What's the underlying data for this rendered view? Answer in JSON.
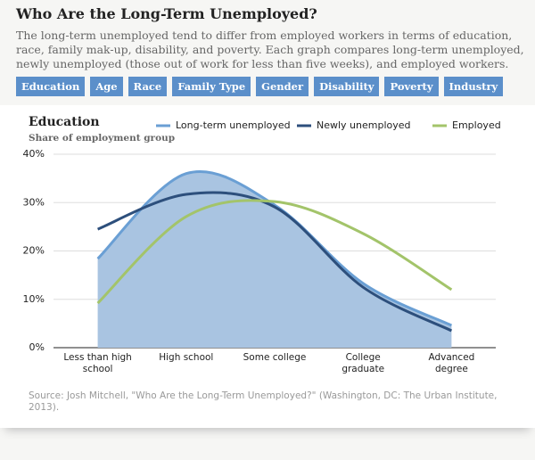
{
  "header": {
    "title": "Who Are the Long-Term Unemployed?",
    "subtitle": "The long-term unemployed tend to differ from employed workers in terms of education, race, family mak-up, disability, and poverty. Each graph compares long-term unemployed, newly unemployed (those out of work for less than five weeks), and employed workers."
  },
  "tabs": [
    "Education",
    "Age",
    "Race",
    "Family Type",
    "Gender",
    "Disability",
    "Poverty",
    "Industry"
  ],
  "chart_data": {
    "type": "line",
    "title": "Education",
    "subtitle": "Share of employment group",
    "categories": [
      "Less than high school",
      "High school",
      "Some college",
      "College graduate",
      "Advanced degree"
    ],
    "series": [
      {
        "name": "Long-term unemployed",
        "color": "#6a9fd4",
        "fill": "#a9c4e1",
        "values": [
          18.4,
          36.0,
          29.5,
          13.3,
          4.6
        ]
      },
      {
        "name": "Newly unemployed",
        "color": "#2d4f7c",
        "values": [
          24.5,
          31.7,
          29.1,
          12.5,
          3.5
        ]
      },
      {
        "name": "Employed",
        "color": "#a3c46a",
        "values": [
          9.2,
          27.1,
          30.2,
          23.6,
          12.0
        ]
      }
    ],
    "ylim": [
      0,
      40
    ],
    "yticks": [
      {
        "value": 0,
        "label": "0%"
      },
      {
        "value": 10,
        "label": "10%"
      },
      {
        "value": 20,
        "label": "20%"
      },
      {
        "value": 30,
        "label": "30%"
      },
      {
        "value": 40,
        "label": "40%"
      }
    ],
    "grid": true
  },
  "source": "Source: Josh Mitchell, \"Who Are the Long-Term Unemployed?\" (Washington, DC: The Urban Institute, 2013)."
}
